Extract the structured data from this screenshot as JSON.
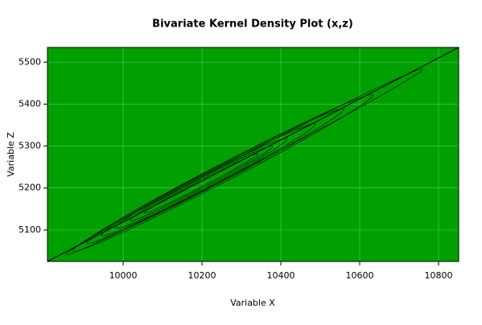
{
  "chart_data": {
    "type": "line",
    "title": "Bivariate Kernel Density Plot (x,z)",
    "x_label": "Variable X",
    "y_label": "Variable Z",
    "x": [
      9808,
      10851
    ],
    "values": [
      5025,
      5535
    ],
    "color": "#000000",
    "xlim": [
      9808,
      10851
    ],
    "ylim": [
      5025,
      5535
    ],
    "xticks": [
      10000,
      10200,
      10400,
      10600,
      10800
    ],
    "yticks": [
      5100,
      5200,
      5300,
      5400,
      5500
    ],
    "background": "#00a000",
    "grid": true
  }
}
